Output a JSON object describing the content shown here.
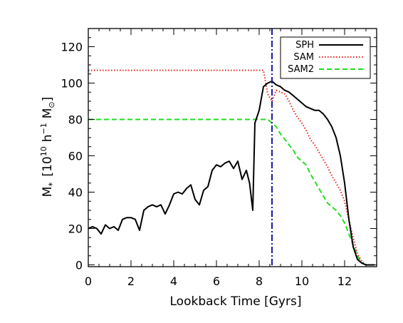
{
  "chart_data": {
    "type": "line",
    "title": "",
    "xlabel": "Lookback Time [Gyrs]",
    "ylabel_main": "M",
    "ylabel_sub": "*",
    "ylabel_units_open": "[10",
    "ylabel_units_exp": "10",
    "ylabel_units_h": "h",
    "ylabel_units_hexp": "−1",
    "ylabel_units_M": "M",
    "ylabel_units_close": "]",
    "xlim": [
      0,
      13.5
    ],
    "ylim": [
      -1,
      130
    ],
    "xticks": [
      0,
      2,
      4,
      6,
      8,
      10,
      12
    ],
    "xtick_labels": [
      "0",
      "2",
      "4",
      "6",
      "8",
      "10",
      "12"
    ],
    "yticks": [
      0,
      20,
      40,
      60,
      80,
      100,
      120
    ],
    "ytick_labels": [
      "0",
      "20",
      "40",
      "60",
      "80",
      "100",
      "120"
    ],
    "grid": false,
    "legend_position": "top-right",
    "vline": {
      "x": 8.6,
      "color": "#1a1aa6",
      "style": "dash-dot"
    },
    "series": [
      {
        "name": "SPH",
        "color": "#000000",
        "style": "solid",
        "x": [
          0,
          0.2,
          0.4,
          0.6,
          0.8,
          1.0,
          1.2,
          1.4,
          1.6,
          1.8,
          2.0,
          2.2,
          2.4,
          2.6,
          2.8,
          3.0,
          3.2,
          3.4,
          3.6,
          3.8,
          4.0,
          4.2,
          4.4,
          4.6,
          4.8,
          5.0,
          5.2,
          5.4,
          5.6,
          5.8,
          6.0,
          6.2,
          6.4,
          6.6,
          6.8,
          7.0,
          7.2,
          7.4,
          7.55,
          7.7,
          7.8,
          8.0,
          8.2,
          8.4,
          8.6,
          8.8,
          9.0,
          9.2,
          9.4,
          9.6,
          9.8,
          10.0,
          10.2,
          10.4,
          10.6,
          10.8,
          11.0,
          11.2,
          11.4,
          11.6,
          11.8,
          12.0,
          12.2,
          12.4,
          12.6,
          12.8,
          13.0,
          13.2,
          13.4
        ],
        "y": [
          20,
          21,
          20,
          17,
          22,
          20,
          21,
          19,
          25,
          26,
          26,
          25,
          19,
          30,
          32,
          33,
          32,
          33,
          28,
          33,
          39,
          40,
          39,
          42,
          44,
          36,
          33,
          41,
          43,
          52,
          55,
          54,
          56,
          57,
          53,
          57,
          47,
          52,
          45,
          30,
          78,
          85,
          98,
          100,
          101,
          99,
          98,
          96,
          95,
          93,
          91,
          89,
          87,
          86,
          85,
          85,
          83,
          80,
          76,
          70,
          60,
          45,
          25,
          10,
          3,
          1,
          0,
          0,
          0
        ]
      },
      {
        "name": "SAM",
        "color": "#e8231a",
        "style": "dotted",
        "x": [
          0,
          1,
          2,
          3,
          4,
          5,
          6,
          7,
          8.0,
          8.2,
          8.4,
          8.6,
          8.8,
          9.0,
          9.2,
          9.4,
          9.6,
          9.8,
          10.0,
          10.2,
          10.4,
          10.6,
          10.8,
          11.0,
          11.2,
          11.4,
          11.6,
          11.8,
          12.0,
          12.2,
          12.4,
          12.6,
          12.8,
          13.0,
          13.2
        ],
        "y": [
          107,
          107,
          107,
          107,
          107,
          107,
          107,
          107,
          107,
          107,
          94,
          90,
          96,
          95,
          94,
          90,
          85,
          81,
          78,
          74,
          69,
          66,
          62,
          58,
          54,
          49,
          45,
          41,
          35,
          25,
          15,
          6,
          2,
          0,
          0
        ]
      },
      {
        "name": "SAM2",
        "color": "#22dd22",
        "style": "dashed",
        "x": [
          0,
          1,
          2,
          3,
          4,
          5,
          6,
          7,
          8.0,
          8.4,
          8.6,
          8.8,
          9.0,
          9.2,
          9.4,
          9.6,
          9.8,
          10.0,
          10.2,
          10.4,
          10.6,
          10.8,
          11.0,
          11.2,
          11.4,
          11.6,
          11.8,
          12.0,
          12.2,
          12.4,
          12.6,
          12.8,
          13.0,
          13.2
        ],
        "y": [
          80,
          80,
          80,
          80,
          80,
          80,
          80,
          80,
          80,
          80,
          78,
          76,
          72,
          69,
          66,
          63,
          59,
          57,
          55,
          50,
          46,
          42,
          38,
          34,
          32,
          30,
          27,
          23,
          17,
          11,
          5,
          1,
          0,
          0
        ]
      }
    ]
  }
}
